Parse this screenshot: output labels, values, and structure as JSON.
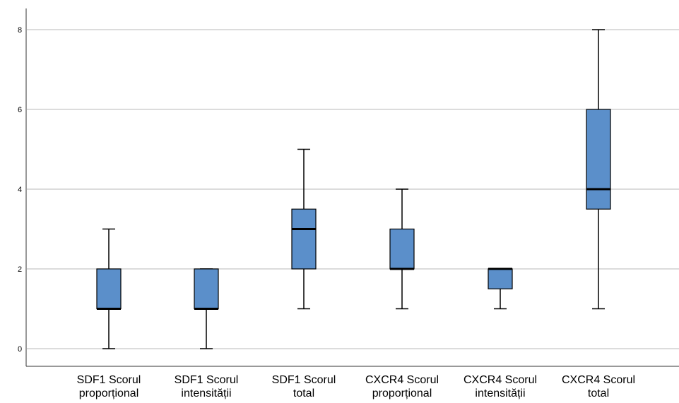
{
  "chart_data": {
    "type": "boxplot",
    "title": "",
    "xlabel": "",
    "ylabel": "",
    "ylim": [
      -0.45,
      8.55
    ],
    "yticks": [
      "0",
      "2",
      "4",
      "6",
      "8"
    ],
    "ytick_values": [
      0,
      2,
      4,
      6,
      8
    ],
    "grid": true,
    "box_color": "#5b8fca",
    "categories": [
      {
        "line1": "SDF1 Scorul",
        "line2": "proporțional"
      },
      {
        "line1": "SDF1 Scorul",
        "line2": "intensității"
      },
      {
        "line1": "SDF1 Scorul",
        "line2": "total"
      },
      {
        "line1": "CXCR4 Scorul",
        "line2": "proporțional"
      },
      {
        "line1": "CXCR4 Scorul",
        "line2": "intensității"
      },
      {
        "line1": "CXCR4 Scorul",
        "line2": "total"
      }
    ],
    "boxes": [
      {
        "min": 0,
        "q1": 1,
        "median": 1,
        "q3": 2,
        "max": 3
      },
      {
        "min": 0,
        "q1": 1,
        "median": 1,
        "q3": 2,
        "max": 2
      },
      {
        "min": 1,
        "q1": 2,
        "median": 3,
        "q3": 3.5,
        "max": 5
      },
      {
        "min": 1,
        "q1": 2,
        "median": 2,
        "q3": 3,
        "max": 4
      },
      {
        "min": 1,
        "q1": 1.5,
        "median": 2,
        "q3": 2,
        "max": 2
      },
      {
        "min": 1,
        "q1": 3.5,
        "median": 4,
        "q3": 6,
        "max": 8
      }
    ]
  }
}
